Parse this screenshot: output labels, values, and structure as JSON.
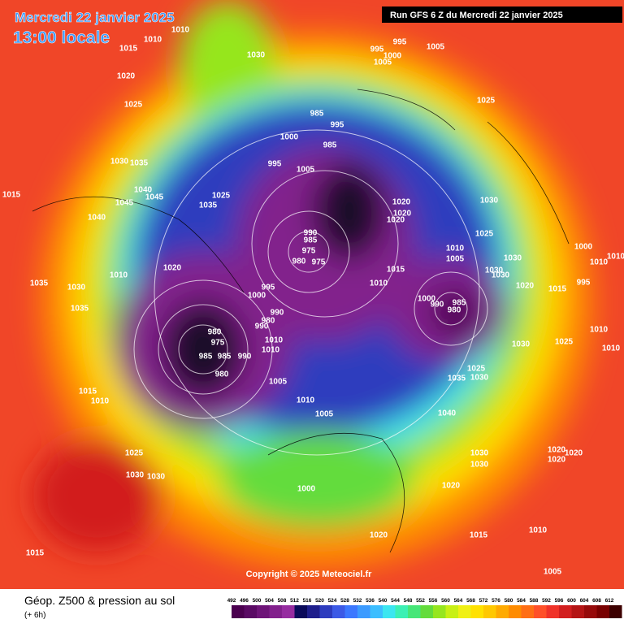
{
  "header": {
    "date": "Mercredi 22 janvier 2025",
    "time": "13:00 locale",
    "run": "Run GFS 6 Z du Mercredi 22 janvier 2025"
  },
  "copyright": "Copyright © 2025 Meteociel.fr",
  "footer": {
    "title": "Géop. Z500 & pression au sol",
    "subtitle": "(+ 6h)"
  },
  "colorbar": {
    "levels": [
      492,
      496,
      500,
      504,
      508,
      512,
      516,
      520,
      524,
      528,
      532,
      536,
      540,
      544,
      548,
      552,
      556,
      560,
      564,
      568,
      572,
      576,
      580,
      584,
      588,
      592,
      596,
      600,
      604,
      608,
      612
    ],
    "colors": [
      "#4b0050",
      "#5a0a64",
      "#6e1478",
      "#82208c",
      "#962ca0",
      "#0a0a5a",
      "#1e1e8c",
      "#2d3cbe",
      "#3c5ae6",
      "#3c78ff",
      "#3c9bff",
      "#3cbeff",
      "#3ce6f0",
      "#3cf0b4",
      "#46e678",
      "#64dc3c",
      "#96e61e",
      "#c8f014",
      "#f0f014",
      "#ffe100",
      "#ffc800",
      "#ffaa00",
      "#ff8c00",
      "#ff6e14",
      "#ff5028",
      "#f03228",
      "#d21e1e",
      "#b41414",
      "#960a0a",
      "#780000",
      "#3c0000"
    ]
  },
  "isobar_labels": [
    "1010",
    "1010",
    "1015",
    "1030",
    "995",
    "995",
    "1000",
    "1005",
    "1005",
    "1020",
    "1025",
    "1025",
    "985",
    "995",
    "1000",
    "985",
    "995",
    "1005",
    "1030",
    "1035",
    "1015",
    "1040",
    "1045",
    "1045",
    "1025",
    "1035",
    "1040",
    "1020",
    "1020",
    "1020",
    "1030",
    "1025",
    "990",
    "985",
    "975",
    "980",
    "975",
    "1010",
    "1005",
    "1030",
    "1030",
    "1030",
    "1000",
    "1010",
    "1010",
    "995",
    "1020",
    "1010",
    "1035",
    "1030",
    "1015",
    "1010",
    "995",
    "1000",
    "1020",
    "1015",
    "1035",
    "1000",
    "990",
    "985",
    "980",
    "990",
    "980",
    "990",
    "980",
    "975",
    "985",
    "985",
    "990",
    "1010",
    "1010",
    "980",
    "1010",
    "1030",
    "1025",
    "1010",
    "1025",
    "1035",
    "1030",
    "1005",
    "1015",
    "1010",
    "1010",
    "1005",
    "1040",
    "1030",
    "1030",
    "1020",
    "1020",
    "1020",
    "1025",
    "1030",
    "1030",
    "1000",
    "1020",
    "1020",
    "1015",
    "1010",
    "1015",
    "1005"
  ]
}
